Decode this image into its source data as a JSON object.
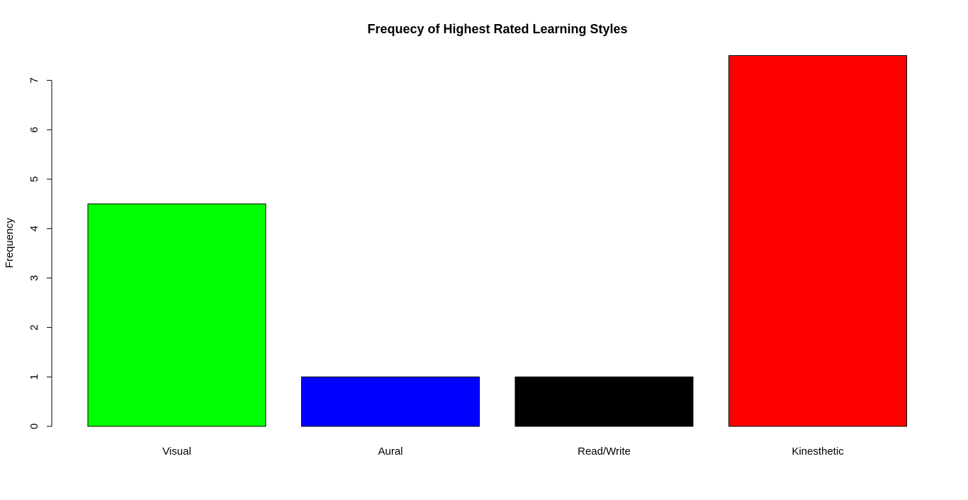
{
  "chart_data": {
    "type": "bar",
    "title": "Frequecy of Highest Rated Learning Styles",
    "xlabel": "",
    "ylabel": "Frequency",
    "categories": [
      "Visual",
      "Aural",
      "Read/Write",
      "Kinesthetic"
    ],
    "values": [
      4.5,
      1,
      1,
      7.5
    ],
    "colors": [
      "#00ff00",
      "#0000ff",
      "#000000",
      "#ff0000"
    ],
    "yticks": [
      "0",
      "1",
      "2",
      "3",
      "4",
      "5",
      "6",
      "7"
    ],
    "ylim": [
      0,
      7.5
    ],
    "grid": false,
    "legend": "none"
  }
}
